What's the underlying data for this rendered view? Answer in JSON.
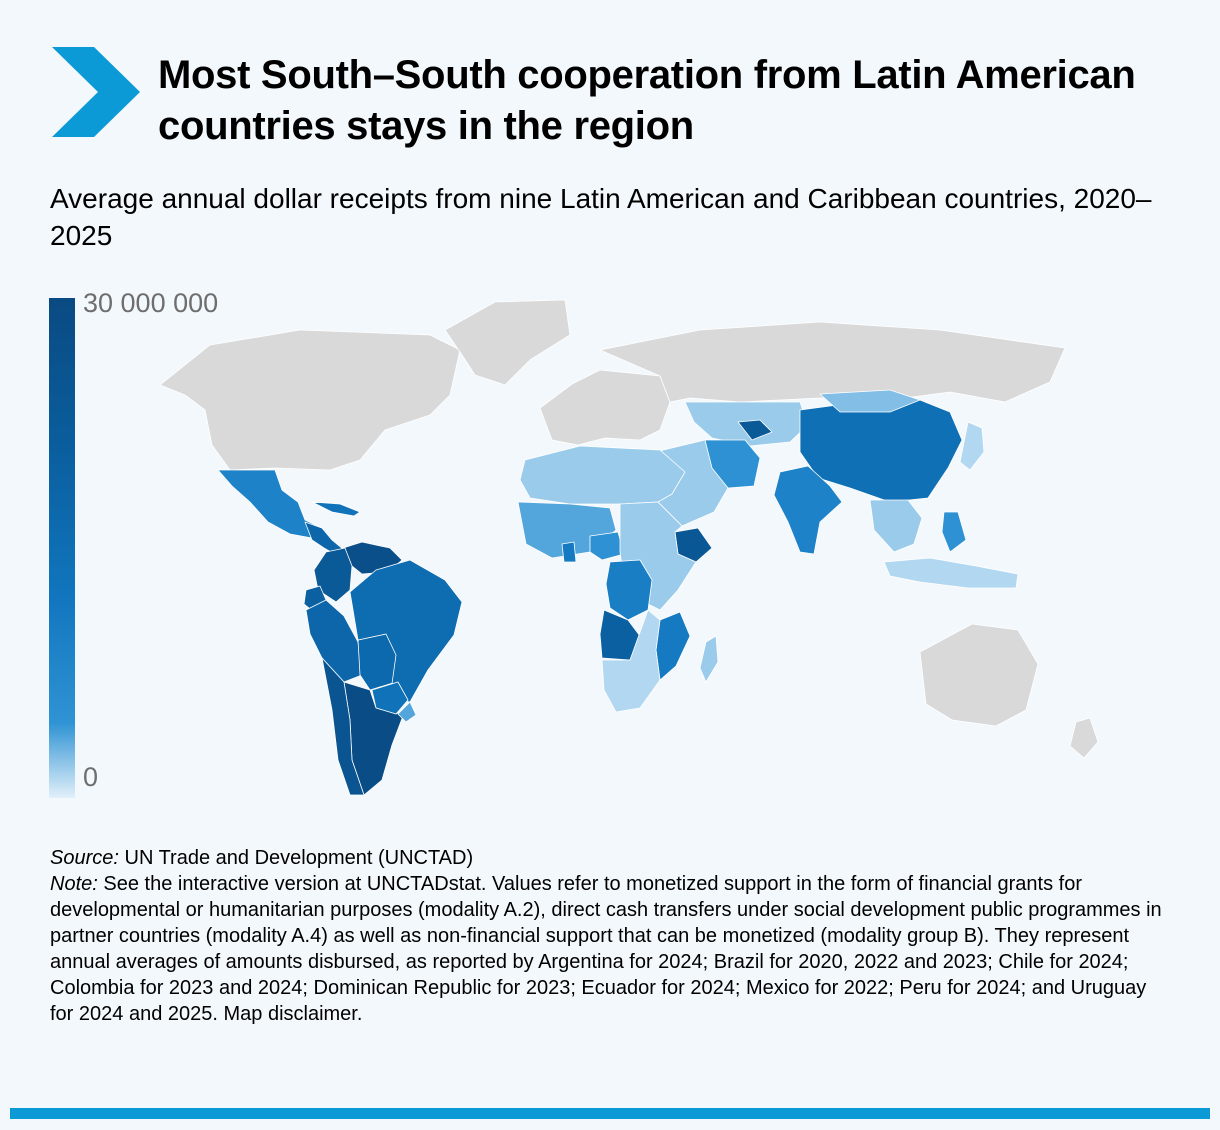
{
  "header": {
    "title": "Most South–South cooperation from Latin American countries stays in the region",
    "subtitle": "Average annual dollar receipts from nine Latin American and Caribbean countries, 2020–2025"
  },
  "legend": {
    "max_label": "30 000 000",
    "min_label": "0",
    "colors": [
      "#0a4a82",
      "#0a5e9e",
      "#1176be",
      "#2f93d4",
      "#e2f0fa"
    ]
  },
  "map": {
    "no_data_color": "#d9d9d9",
    "regions": [
      {
        "name": "North America",
        "value": null
      },
      {
        "name": "Greenland",
        "value": null
      },
      {
        "name": "Mexico",
        "value": 12000000
      },
      {
        "name": "Central America",
        "value": 20000000
      },
      {
        "name": "Cuba",
        "value": 16000000
      },
      {
        "name": "Venezuela",
        "value": 28000000
      },
      {
        "name": "Colombia",
        "value": 24000000
      },
      {
        "name": "Ecuador",
        "value": 22000000
      },
      {
        "name": "Peru",
        "value": 20000000
      },
      {
        "name": "Bolivia",
        "value": 19000000
      },
      {
        "name": "Brazil",
        "value": 18000000
      },
      {
        "name": "Paraguay",
        "value": 16000000
      },
      {
        "name": "Argentina",
        "value": 29000000
      },
      {
        "name": "Chile",
        "value": 26000000
      },
      {
        "name": "Uruguay",
        "value": 6000000
      },
      {
        "name": "Europe",
        "value": null
      },
      {
        "name": "Russia",
        "value": null
      },
      {
        "name": "Central Asia",
        "value": 3000000
      },
      {
        "name": "Uzbekistan",
        "value": 24000000
      },
      {
        "name": "China",
        "value": 17000000
      },
      {
        "name": "Mongolia",
        "value": 4000000
      },
      {
        "name": "India",
        "value": 12000000
      },
      {
        "name": "Iran",
        "value": 8000000
      },
      {
        "name": "Middle East",
        "value": 3000000
      },
      {
        "name": "North Africa",
        "value": 3000000
      },
      {
        "name": "West Africa",
        "value": 6000000
      },
      {
        "name": "Ghana",
        "value": 14000000
      },
      {
        "name": "Nigeria",
        "value": 8000000
      },
      {
        "name": "Ethiopia",
        "value": 25000000
      },
      {
        "name": "East Africa",
        "value": 3000000
      },
      {
        "name": "DR Congo",
        "value": 13000000
      },
      {
        "name": "Angola",
        "value": 22000000
      },
      {
        "name": "Mozambique",
        "value": 14000000
      },
      {
        "name": "Southern Africa",
        "value": 2000000
      },
      {
        "name": "Madagascar",
        "value": 3000000
      },
      {
        "name": "Southeast Asia",
        "value": 3000000
      },
      {
        "name": "Philippines",
        "value": 8000000
      },
      {
        "name": "Indonesia",
        "value": 2000000
      },
      {
        "name": "Japan",
        "value": 2000000
      },
      {
        "name": "Australia",
        "value": null
      },
      {
        "name": "New Zealand",
        "value": null
      }
    ]
  },
  "footnotes": {
    "source_label": "Source:",
    "source_text": " UN Trade and Development (UNCTAD)",
    "note_label": "Note:",
    "note_text": " See the interactive version at UNCTADstat. Values refer to monetized support in the form of financial grants for developmental or humanitarian purposes (modality A.2), direct cash transfers under social development public programmes in partner countries (modality A.4) as well as non-financial support that can be monetized (modality group B). They represent annual averages of amounts disbursed, as reported by Argentina for 2024; Brazil for 2020, 2022 and 2023; Chile for 2024; Colombia for 2023 and 2024; Dominican Republic for 2023; Ecuador for 2024; Mexico for 2022; Peru for 2024; and Uruguay for 2024 and 2025. Map disclaimer."
  }
}
